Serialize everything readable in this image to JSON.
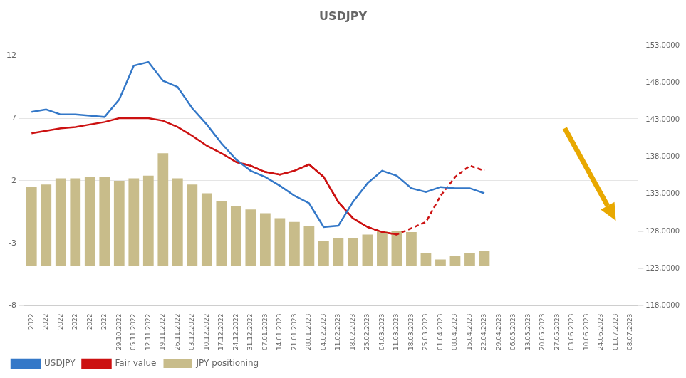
{
  "chart_data": {
    "type": "bar",
    "title": "USDJPY",
    "categories": [
      "2022",
      "2022",
      "2022",
      "2022",
      "2022",
      "2022",
      "29.10.2022",
      "05.11.2022",
      "12.11.2022",
      "19.11.2022",
      "26.11.2022",
      "03.12.2022",
      "10.12.2022",
      "17.12.2022",
      "24.12.2022",
      "31.12.2022",
      "07.01.2023",
      "14.01.2023",
      "21.01.2023",
      "28.01.2023",
      "04.02.2023",
      "11.02.2023",
      "18.02.2023",
      "25.02.2023",
      "04.03.2023",
      "11.03.2023",
      "18.03.2023",
      "25.03.2023",
      "01.04.2023",
      "08.04.2023",
      "15.04.2023",
      "22.04.2023",
      "29.04.2023",
      "06.05.2023",
      "13.05.2023",
      "20.05.2023",
      "27.05.2023",
      "03.06.2023",
      "10.06.2023",
      "24.06.2023",
      "01.07.2023",
      "08.07.2023"
    ],
    "series": [
      {
        "name": "JPY positioning",
        "type": "bar",
        "color": "#c8bc8a",
        "bottom": -4.8,
        "values": [
          6.3,
          6.5,
          7.0,
          7.0,
          7.1,
          7.1,
          6.8,
          7.0,
          7.2,
          9.0,
          7.0,
          6.5,
          5.8,
          5.2,
          4.8,
          4.5,
          4.2,
          3.8,
          3.5,
          3.2,
          2.0,
          2.2,
          2.2,
          2.5,
          2.8,
          2.8,
          2.7,
          1.0,
          0.5,
          0.8,
          1.0,
          1.2,
          null,
          null,
          null,
          null,
          null,
          null,
          null,
          null,
          null,
          null
        ]
      },
      {
        "name": "USDJPY",
        "type": "line",
        "color": "#3478c8",
        "values": [
          7.5,
          7.7,
          7.3,
          7.3,
          7.2,
          7.1,
          8.5,
          11.2,
          11.5,
          10.0,
          9.5,
          7.8,
          6.5,
          5.0,
          3.7,
          2.8,
          2.3,
          1.6,
          0.8,
          0.2,
          -1.7,
          -1.6,
          0.3,
          1.8,
          2.8,
          2.4,
          1.4,
          1.1,
          1.5,
          1.4,
          1.4,
          1.0,
          null,
          null,
          null,
          null,
          null,
          null,
          null,
          null,
          null,
          null
        ]
      },
      {
        "name": "Fair value",
        "type": "line",
        "color": "#cc1111",
        "values": [
          5.8,
          6.0,
          6.2,
          6.3,
          6.5,
          6.7,
          7.0,
          7.0,
          7.0,
          6.8,
          6.3,
          5.6,
          4.8,
          4.2,
          3.5,
          3.2,
          2.7,
          2.5,
          2.8,
          3.3,
          2.3,
          0.3,
          -1.0,
          -1.7,
          -2.1,
          -2.3,
          null,
          null,
          null,
          null,
          null,
          null,
          null,
          null,
          null,
          null,
          null,
          null,
          null,
          null,
          null,
          null
        ]
      },
      {
        "type": "line",
        "color": "#cc1111",
        "line_style": "dashed",
        "values": [
          null,
          null,
          null,
          null,
          null,
          null,
          null,
          null,
          null,
          null,
          null,
          null,
          null,
          null,
          3.5,
          3.2,
          2.7,
          2.5,
          2.8,
          3.3,
          2.3,
          0.3,
          -1.0,
          -1.7,
          -2.1,
          -2.3,
          -1.8,
          -1.3,
          0.8,
          2.3,
          3.2,
          2.8,
          null,
          null,
          null,
          null,
          null,
          null,
          null,
          null,
          null,
          null
        ]
      }
    ],
    "ylim": [
      -8,
      14
    ],
    "yticks": [
      -8,
      -3,
      2,
      7,
      12
    ],
    "y2lim": [
      118000,
      155000
    ],
    "y2ticks": [
      {
        "value": 118000,
        "label": "118,0000"
      },
      {
        "value": 123000,
        "label": "123,0000"
      },
      {
        "value": 128000,
        "label": "128,0000"
      },
      {
        "value": 133000,
        "label": "133,0000"
      },
      {
        "value": 138000,
        "label": "138,0000"
      },
      {
        "value": 143000,
        "label": "143,0000"
      },
      {
        "value": 148000,
        "label": "148,0000"
      },
      {
        "value": 153000,
        "label": "153,0000"
      }
    ],
    "grid": "y",
    "legend": "lower left",
    "arrow": {
      "from": [
        36.5,
        6.2
      ],
      "to": [
        40.0,
        -1.2
      ],
      "color": "#e8a800"
    }
  }
}
